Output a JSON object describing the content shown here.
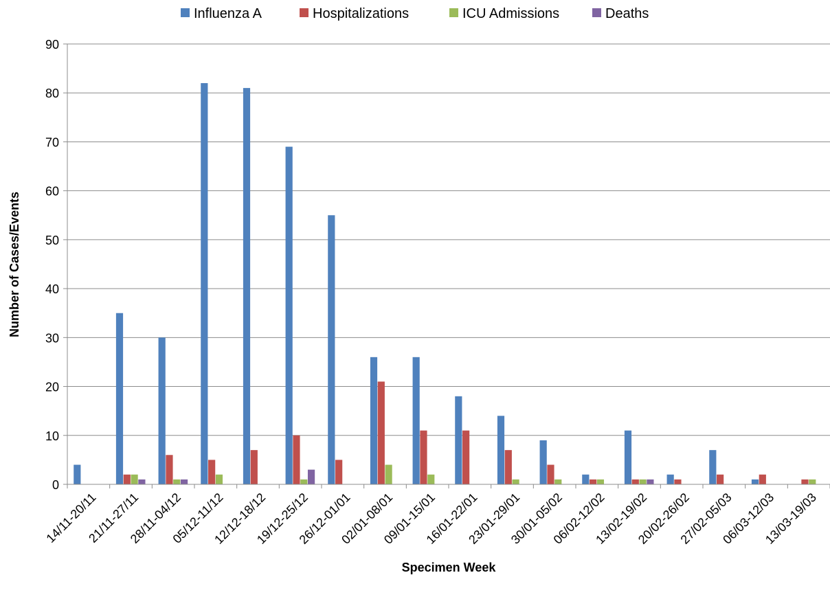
{
  "chart_data": {
    "type": "bar",
    "title": "",
    "xlabel": "Specimen Week",
    "ylabel": "Number of Cases/Events",
    "ylim": [
      0,
      90
    ],
    "yticks": [
      0,
      10,
      20,
      30,
      40,
      50,
      60,
      70,
      80,
      90
    ],
    "grid": "horizontal",
    "legend_position": "top",
    "categories": [
      "14/11-20/11",
      "21/11-27/11",
      "28/11-04/12",
      "05/12-11/12",
      "12/12-18/12",
      "19/12-25/12",
      "26/12-01/01",
      "02/01-08/01",
      "09/01-15/01",
      "16/01-22/01",
      "23/01-29/01",
      "30/01-05/02",
      "06/02-12/02",
      "13/02-19/02",
      "20/02-26/02",
      "27/02-05/03",
      "06/03-12/03",
      "13/03-19/03"
    ],
    "series": [
      {
        "name": "Influenza A",
        "color": "#4F81BD",
        "values": [
          4,
          35,
          30,
          82,
          81,
          69,
          55,
          26,
          26,
          18,
          14,
          9,
          2,
          11,
          2,
          7,
          1,
          0
        ]
      },
      {
        "name": "Hospitalizations",
        "color": "#C0504D",
        "values": [
          0,
          2,
          6,
          5,
          7,
          10,
          5,
          21,
          11,
          11,
          7,
          4,
          1,
          1,
          1,
          2,
          2,
          1
        ]
      },
      {
        "name": "ICU Admissions",
        "color": "#9BBB59",
        "values": [
          0,
          2,
          1,
          2,
          0,
          1,
          0,
          4,
          2,
          0,
          1,
          1,
          1,
          1,
          0,
          0,
          0,
          1
        ]
      },
      {
        "name": "Deaths",
        "color": "#8064A2",
        "values": [
          0,
          1,
          1,
          0,
          0,
          3,
          0,
          0,
          0,
          0,
          0,
          0,
          0,
          1,
          0,
          0,
          0,
          0
        ]
      }
    ]
  }
}
